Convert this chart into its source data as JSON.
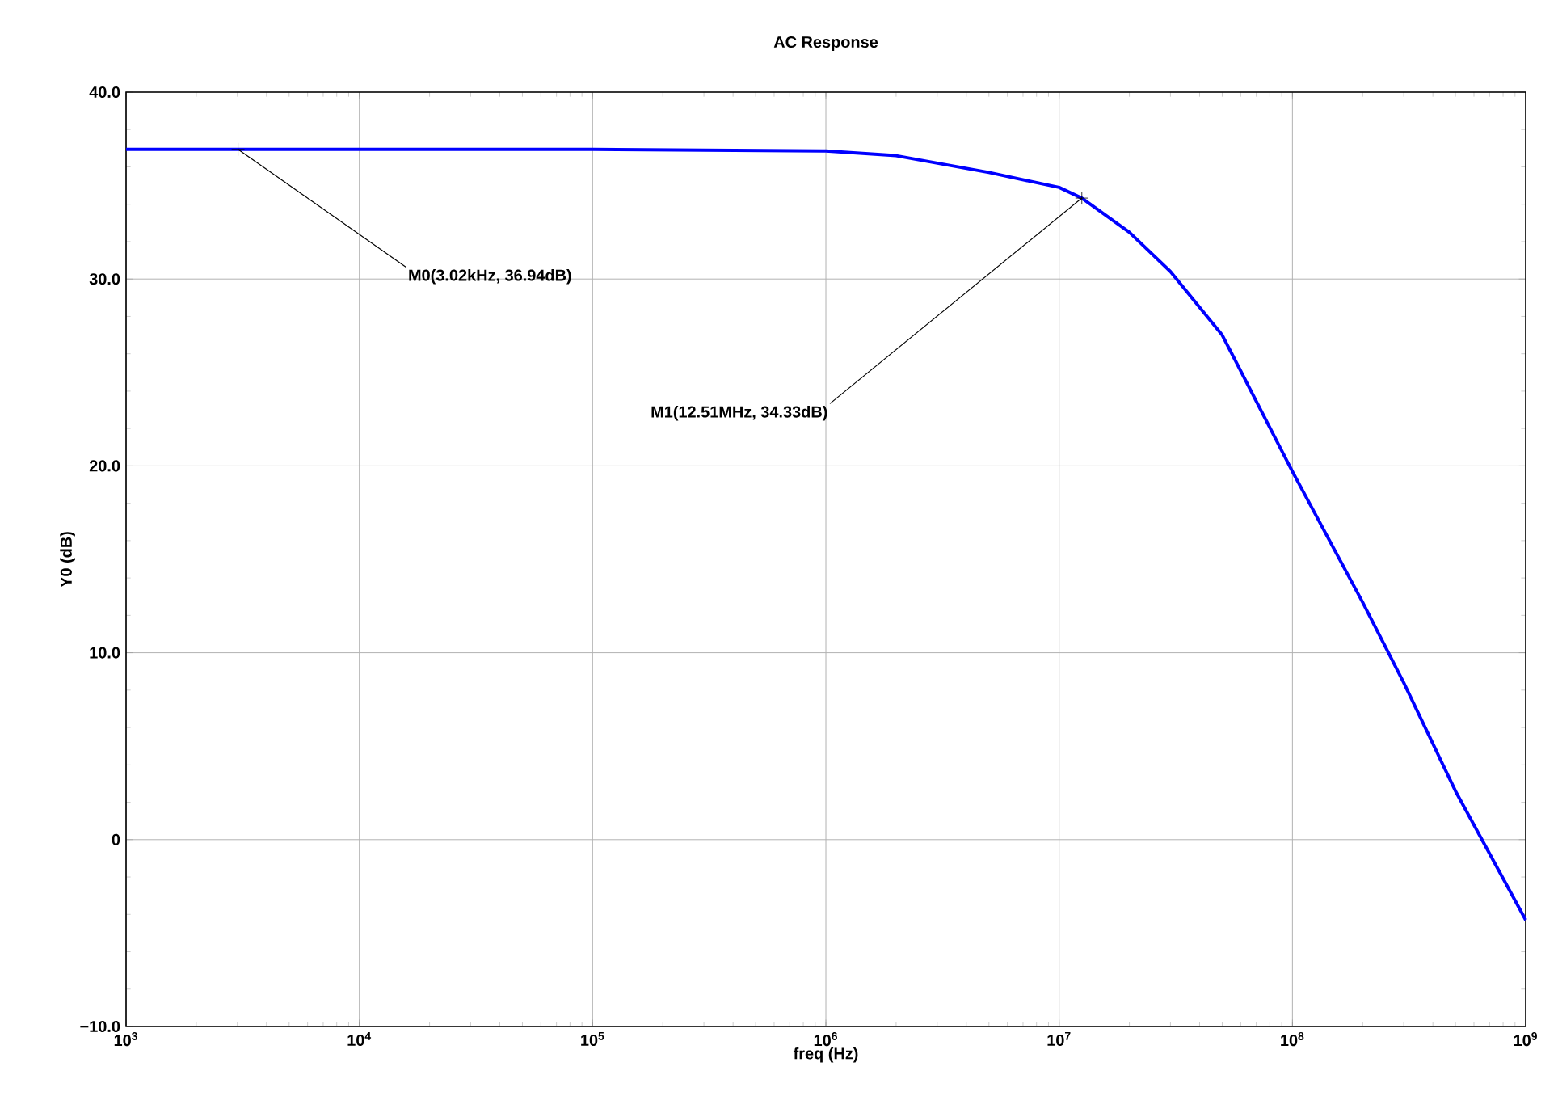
{
  "chart_data": {
    "type": "line",
    "title": "AC Response",
    "xlabel": "freq (Hz)",
    "ylabel": "Y0 (dB)",
    "x": [
      1000,
      3020,
      10000,
      100000,
      1000000,
      2000000,
      5000000,
      10000000,
      12510000,
      20000000,
      30000000,
      50000000,
      100000000,
      200000000,
      300000000,
      500000000,
      1000000000
    ],
    "values": [
      36.94,
      36.94,
      36.94,
      36.94,
      36.85,
      36.6,
      35.7,
      34.9,
      34.33,
      32.5,
      30.4,
      27.0,
      19.7,
      12.7,
      8.4,
      2.6,
      -4.3
    ],
    "color": "#0000ff",
    "log": "x",
    "grid": true,
    "xlim": [
      1000,
      1000000000
    ],
    "ylim": [
      -10,
      40
    ],
    "xticks": [
      {
        "value": 1000,
        "label": "10$^{3}$"
      },
      {
        "value": 10000,
        "label": "10$^{4}$"
      },
      {
        "value": 100000,
        "label": "10$^{5}$"
      },
      {
        "value": 1000000,
        "label": "10$^{6}$"
      },
      {
        "value": 10000000,
        "label": "10$^{7}$"
      },
      {
        "value": 100000000,
        "label": "10$^{8}$"
      },
      {
        "value": 1000000000,
        "label": "10$^{9}$"
      }
    ],
    "yticks": [
      {
        "value": -10,
        "label": "−10.0"
      },
      {
        "value": 0,
        "label": "0"
      },
      {
        "value": 10,
        "label": "10.0"
      },
      {
        "value": 20,
        "label": "20.0"
      },
      {
        "value": 30,
        "label": "30.0"
      },
      {
        "value": 40,
        "label": "40.0"
      }
    ],
    "annotations": [
      {
        "text": "M0(3.02kHz, 36.94dB)",
        "x": 3020,
        "y": 36.94
      },
      {
        "text": "M1(12.51MHz, 34.33dB)",
        "x": 12510000,
        "y": 34.33
      }
    ]
  }
}
